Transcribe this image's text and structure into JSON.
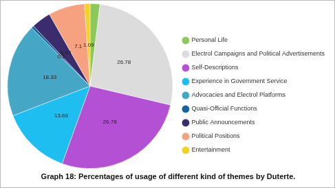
{
  "chart_data": {
    "type": "pie",
    "title": "Graph 18: Percentages of usage of different kind of themes by Duterte.",
    "categories": [
      "Personal Life",
      "Electrol Campaigns and Political Advertisements",
      "Self-Descriptions",
      "Experience in Government Service",
      "Advocacies and Electrol Platforms",
      "Quasi-Official Functions",
      "Public Announcements",
      "Political Positions",
      "Entertainment"
    ],
    "values": [
      1.93,
      26.78,
      26.78,
      13.66,
      18.33,
      0.5,
      3.83,
      7.1,
      1.09
    ],
    "value_labels": [
      null,
      "26.78",
      "26.78",
      "13.66",
      "18.33",
      "0.5",
      "3.83",
      "7.1",
      "1.09"
    ],
    "colors": [
      "#8dc95a",
      "#dcdcdc",
      "#b350d4",
      "#1fbef0",
      "#45a6c6",
      "#16639c",
      "#3b2c6e",
      "#f6a17f",
      "#f4d126"
    ],
    "data_labels": true,
    "legend": "right"
  }
}
